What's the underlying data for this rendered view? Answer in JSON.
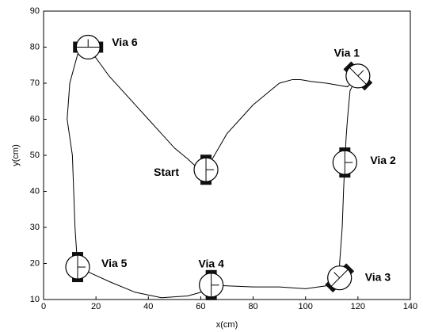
{
  "chart_data": {
    "type": "line",
    "xlabel": "x(cm)",
    "ylabel": "y(cm)",
    "xlim": [
      0,
      140
    ],
    "ylim": [
      10,
      90
    ],
    "xticks": [
      0,
      20,
      40,
      60,
      80,
      100,
      120,
      140
    ],
    "yticks": [
      10,
      20,
      30,
      40,
      50,
      60,
      70,
      80,
      90
    ],
    "series": [
      {
        "color": "#000000",
        "x": [
          62,
          66,
          70,
          75,
          80,
          85,
          90,
          95,
          98,
          102,
          108,
          112,
          116,
          120,
          117,
          116,
          115.5,
          115,
          114.5,
          114,
          113.5,
          113,
          113,
          110,
          100,
          90,
          80,
          70,
          64,
          60,
          55,
          45,
          35,
          25,
          13,
          12,
          11.5,
          11,
          9,
          10,
          13,
          17,
          20,
          25,
          30,
          35,
          40,
          45,
          50,
          55,
          58,
          62
        ],
        "y": [
          46,
          51,
          56,
          60,
          64,
          67,
          70,
          71,
          71,
          70.5,
          70,
          69.5,
          69,
          72,
          68,
          60,
          55,
          48,
          40,
          30,
          25,
          20,
          16,
          14,
          13,
          13.5,
          13.5,
          13.8,
          14,
          12,
          11,
          10.5,
          12,
          15,
          19,
          30,
          40,
          50,
          60,
          70,
          78,
          80,
          77,
          72,
          68,
          64,
          60,
          56,
          52,
          49,
          47,
          46
        ]
      }
    ],
    "waypoints": [
      {
        "label": "Start",
        "x": 62,
        "y": 46
      },
      {
        "label": "Via 1",
        "x": 120,
        "y": 72
      },
      {
        "label": "Via 2",
        "x": 115,
        "y": 48
      },
      {
        "label": "Via 3",
        "x": 113,
        "y": 16
      },
      {
        "label": "Via 4",
        "x": 64,
        "y": 14
      },
      {
        "label": "Via 5",
        "x": 13,
        "y": 19
      },
      {
        "label": "Via 6",
        "x": 17,
        "y": 80
      }
    ]
  }
}
